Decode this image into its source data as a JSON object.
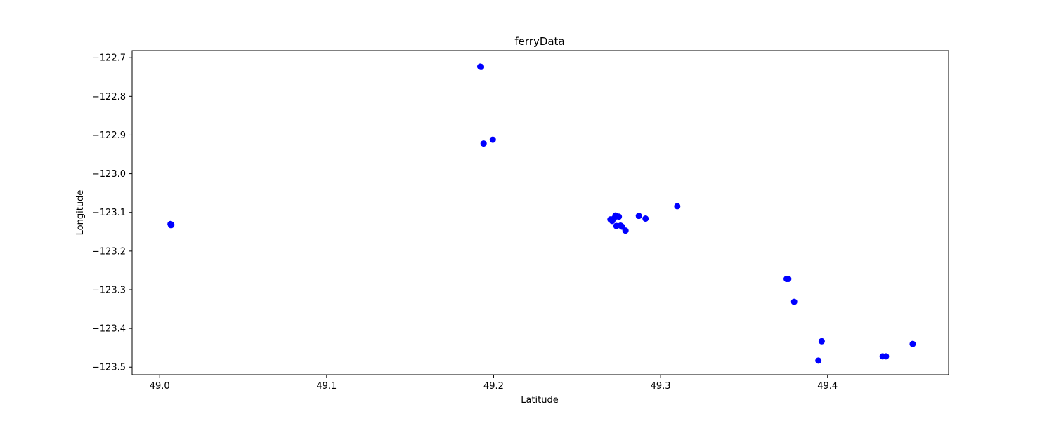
{
  "chart_data": {
    "type": "scatter",
    "title": "ferryData",
    "xlabel": "Latitude",
    "ylabel": "Longitude",
    "xlim": [
      48.9835,
      49.4725
    ],
    "ylim": [
      -123.5195,
      -122.6815
    ],
    "xticks": [
      49.0,
      49.1,
      49.2,
      49.3,
      49.4
    ],
    "xtick_labels": [
      "49.0",
      "49.1",
      "49.2",
      "49.3",
      "49.4"
    ],
    "yticks": [
      -122.7,
      -122.8,
      -122.9,
      -123.0,
      -123.1,
      -123.2,
      -123.3,
      -123.4,
      -123.5
    ],
    "ytick_labels": [
      "−122.7",
      "−122.8",
      "−122.9",
      "−123.0",
      "−123.1",
      "−123.2",
      "−123.3",
      "−123.4",
      "−123.5"
    ],
    "grid": false,
    "marker_color": "#0000ff",
    "points": [
      {
        "x": 49.0065,
        "y": -123.13
      },
      {
        "x": 49.0068,
        "y": -123.133
      },
      {
        "x": 49.007,
        "y": -123.132
      },
      {
        "x": 49.192,
        "y": -122.723
      },
      {
        "x": 49.1925,
        "y": -122.724
      },
      {
        "x": 49.194,
        "y": -122.922
      },
      {
        "x": 49.1995,
        "y": -122.912
      },
      {
        "x": 49.27,
        "y": -123.118
      },
      {
        "x": 49.271,
        "y": -123.122
      },
      {
        "x": 49.272,
        "y": -123.116
      },
      {
        "x": 49.273,
        "y": -123.108
      },
      {
        "x": 49.2735,
        "y": -123.135
      },
      {
        "x": 49.275,
        "y": -123.111
      },
      {
        "x": 49.276,
        "y": -123.134
      },
      {
        "x": 49.277,
        "y": -123.137
      },
      {
        "x": 49.279,
        "y": -123.147
      },
      {
        "x": 49.287,
        "y": -123.109
      },
      {
        "x": 49.291,
        "y": -123.116
      },
      {
        "x": 49.31,
        "y": -123.084
      },
      {
        "x": 49.3755,
        "y": -123.272
      },
      {
        "x": 49.3765,
        "y": -123.272
      },
      {
        "x": 49.38,
        "y": -123.331
      },
      {
        "x": 49.3945,
        "y": -123.483
      },
      {
        "x": 49.3965,
        "y": -123.433
      },
      {
        "x": 49.433,
        "y": -123.472
      },
      {
        "x": 49.435,
        "y": -123.472
      },
      {
        "x": 49.451,
        "y": -123.44
      }
    ]
  }
}
